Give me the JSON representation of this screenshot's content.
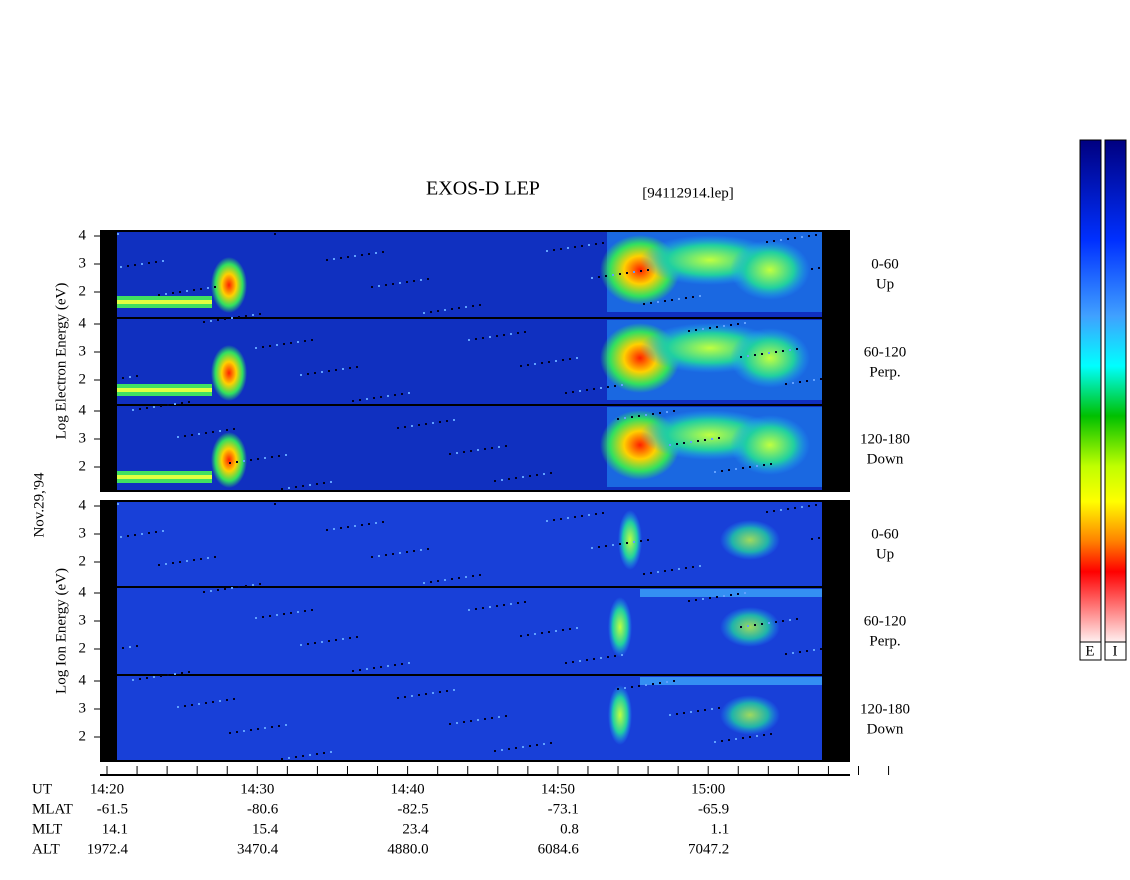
{
  "header": {
    "title": "EXOS-D LEP",
    "file": "[94112914.lep]"
  },
  "date": "Nov.29,'94",
  "species": [
    {
      "label": "Log  Electron  Energy (eV)",
      "panels": [
        {
          "ticks": [
            "4",
            "3",
            "2"
          ],
          "range": "0-60",
          "dir": "Up"
        },
        {
          "ticks": [
            "4",
            "3",
            "2"
          ],
          "range": "60-120",
          "dir": "Perp."
        },
        {
          "ticks": [
            "4",
            "3",
            "2"
          ],
          "range": "120-180",
          "dir": "Down"
        }
      ]
    },
    {
      "label": "Log  Ion  Energy (eV)",
      "panels": [
        {
          "ticks": [
            "4",
            "3",
            "2"
          ],
          "range": "0-60",
          "dir": "Up"
        },
        {
          "ticks": [
            "4",
            "3",
            "2"
          ],
          "range": "60-120",
          "dir": "Perp."
        },
        {
          "ticks": [
            "4",
            "3",
            "2"
          ],
          "range": "120-180",
          "dir": "Down"
        }
      ]
    }
  ],
  "time_axis": {
    "rows": [
      {
        "name": "UT",
        "values": [
          "14:20",
          "14:30",
          "14:40",
          "14:50",
          "15:00"
        ]
      },
      {
        "name": "MLAT",
        "values": [
          "-61.5",
          "-80.6",
          "-82.5",
          "-73.1",
          "-65.9"
        ]
      },
      {
        "name": "MLT",
        "values": [
          "14.1",
          "15.4",
          "23.4",
          "0.8",
          "1.1"
        ]
      },
      {
        "name": "ALT",
        "values": [
          "1972.4",
          "3470.4",
          "4880.0",
          "6084.6",
          "7047.2"
        ]
      }
    ]
  },
  "colorbars": [
    "E",
    "I"
  ]
}
